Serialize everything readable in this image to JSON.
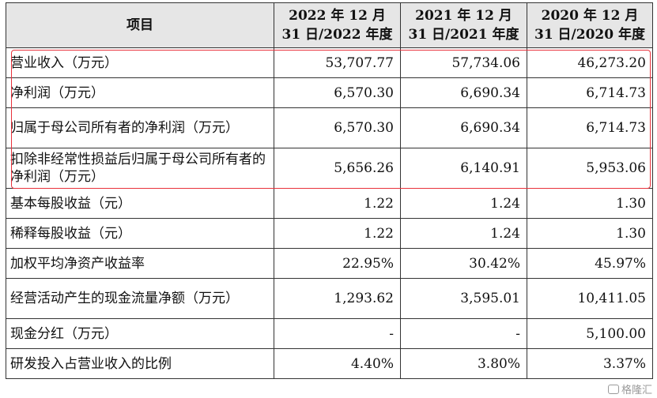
{
  "table": {
    "headers": [
      "项目",
      "2022 年 12 月 31 日/2022 年度",
      "2021 年 12 月 31 日/2021 年度",
      "2020 年 12 月 31 日/2020 年度"
    ],
    "rows": [
      {
        "label": "营业收入（万元）",
        "v2022": "53,707.77",
        "v2021": "57,734.06",
        "v2020": "46,273.20"
      },
      {
        "label": "净利润（万元）",
        "v2022": "6,570.30",
        "v2021": "6,690.34",
        "v2020": "6,714.73"
      },
      {
        "label": "归属于母公司所有者的净利润（万元）",
        "v2022": "6,570.30",
        "v2021": "6,690.34",
        "v2020": "6,714.73"
      },
      {
        "label": "扣除非经常性损益后归属于母公司所有者的净利润（万元）",
        "v2022": "5,656.26",
        "v2021": "6,140.91",
        "v2020": "5,953.06"
      },
      {
        "label": "基本每股收益（元）",
        "v2022": "1.22",
        "v2021": "1.24",
        "v2020": "1.30"
      },
      {
        "label": "稀释每股收益（元）",
        "v2022": "1.22",
        "v2021": "1.24",
        "v2020": "1.30"
      },
      {
        "label": "加权平均净资产收益率",
        "v2022": "22.95%",
        "v2021": "30.42%",
        "v2020": "45.97%"
      },
      {
        "label": "经营活动产生的现金流量净额（万元）",
        "v2022": "1,293.62",
        "v2021": "3,595.01",
        "v2020": "10,411.05"
      },
      {
        "label": "现金分红（万元）",
        "v2022": "-",
        "v2021": "-",
        "v2020": "5,100.00"
      },
      {
        "label": "研发投入占营业收入的比例",
        "v2022": "4.40%",
        "v2021": "3.80%",
        "v2020": "3.37%"
      }
    ]
  },
  "watermark": "格隆汇",
  "colors": {
    "highlight": "#e8323c",
    "header_bg": "#e6e6e6"
  }
}
